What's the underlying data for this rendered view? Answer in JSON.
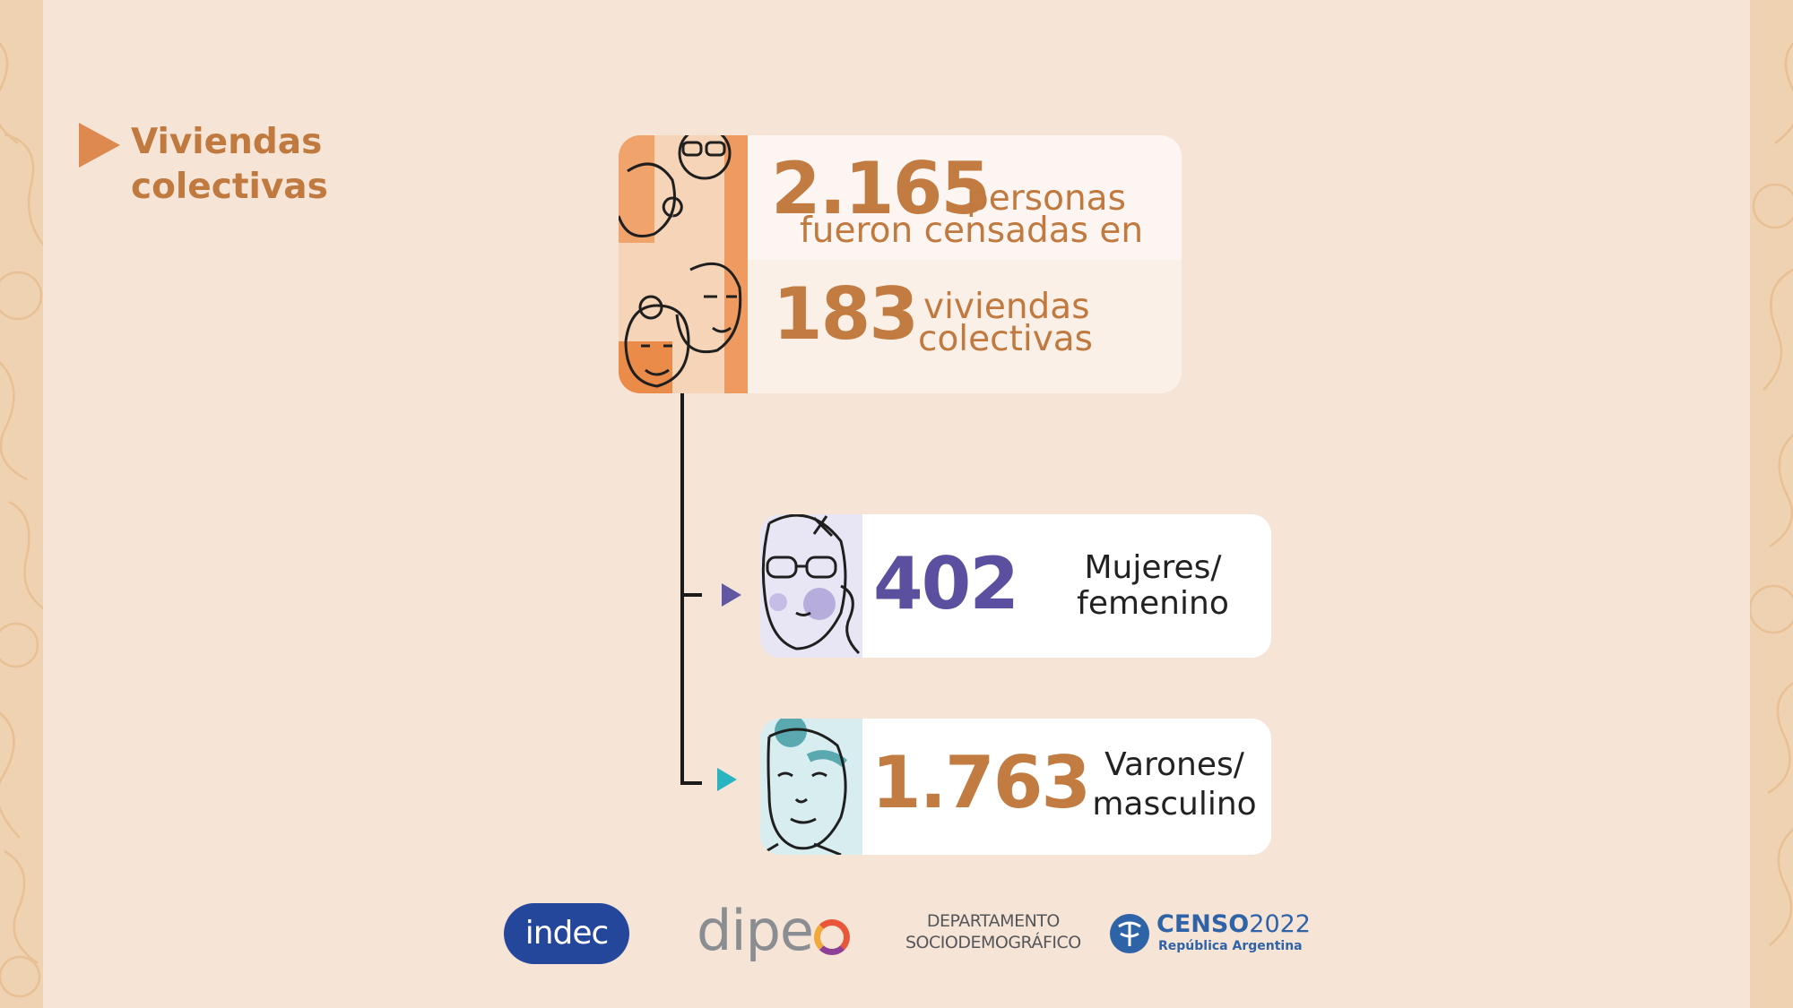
{
  "section": {
    "title_line1": "Viviendas",
    "title_line2": "colectivas"
  },
  "summary": {
    "persons_value": "2.165",
    "persons_label": "personas",
    "censused_label": "fueron censadas en",
    "dwellings_value": "183",
    "dwellings_label_line1": "viviendas",
    "dwellings_label_line2": "colectivas"
  },
  "breakdown": {
    "women": {
      "value": "402",
      "label_line1": "Mujeres/",
      "label_line2": "femenino"
    },
    "men": {
      "value": "1.763",
      "label_line1": "Varones/",
      "label_line2": "masculino"
    }
  },
  "logos": {
    "indec": "indec",
    "dipec": "dipe",
    "socio_line1": "DEPARTAMENTO",
    "socio_line2": "SOCIODEMOGRÁFICO",
    "censo_bold": "CENSO",
    "censo_year": "2022",
    "censo_sub": "República Argentina"
  },
  "colors": {
    "background": "#f6e5d7",
    "accent_orange": "#c27b40",
    "title_arrow": "#de8950",
    "women_purple": "#5b4fa0",
    "men_teal": "#2ab3c0",
    "indec_blue": "#24479b",
    "censo_blue": "#2f63a8"
  },
  "icons": {
    "title": "triangle-arrow-icon",
    "summary_image": "people-illustration-icon",
    "women_image": "woman-face-illustration-icon",
    "men_image": "man-face-illustration-icon"
  }
}
